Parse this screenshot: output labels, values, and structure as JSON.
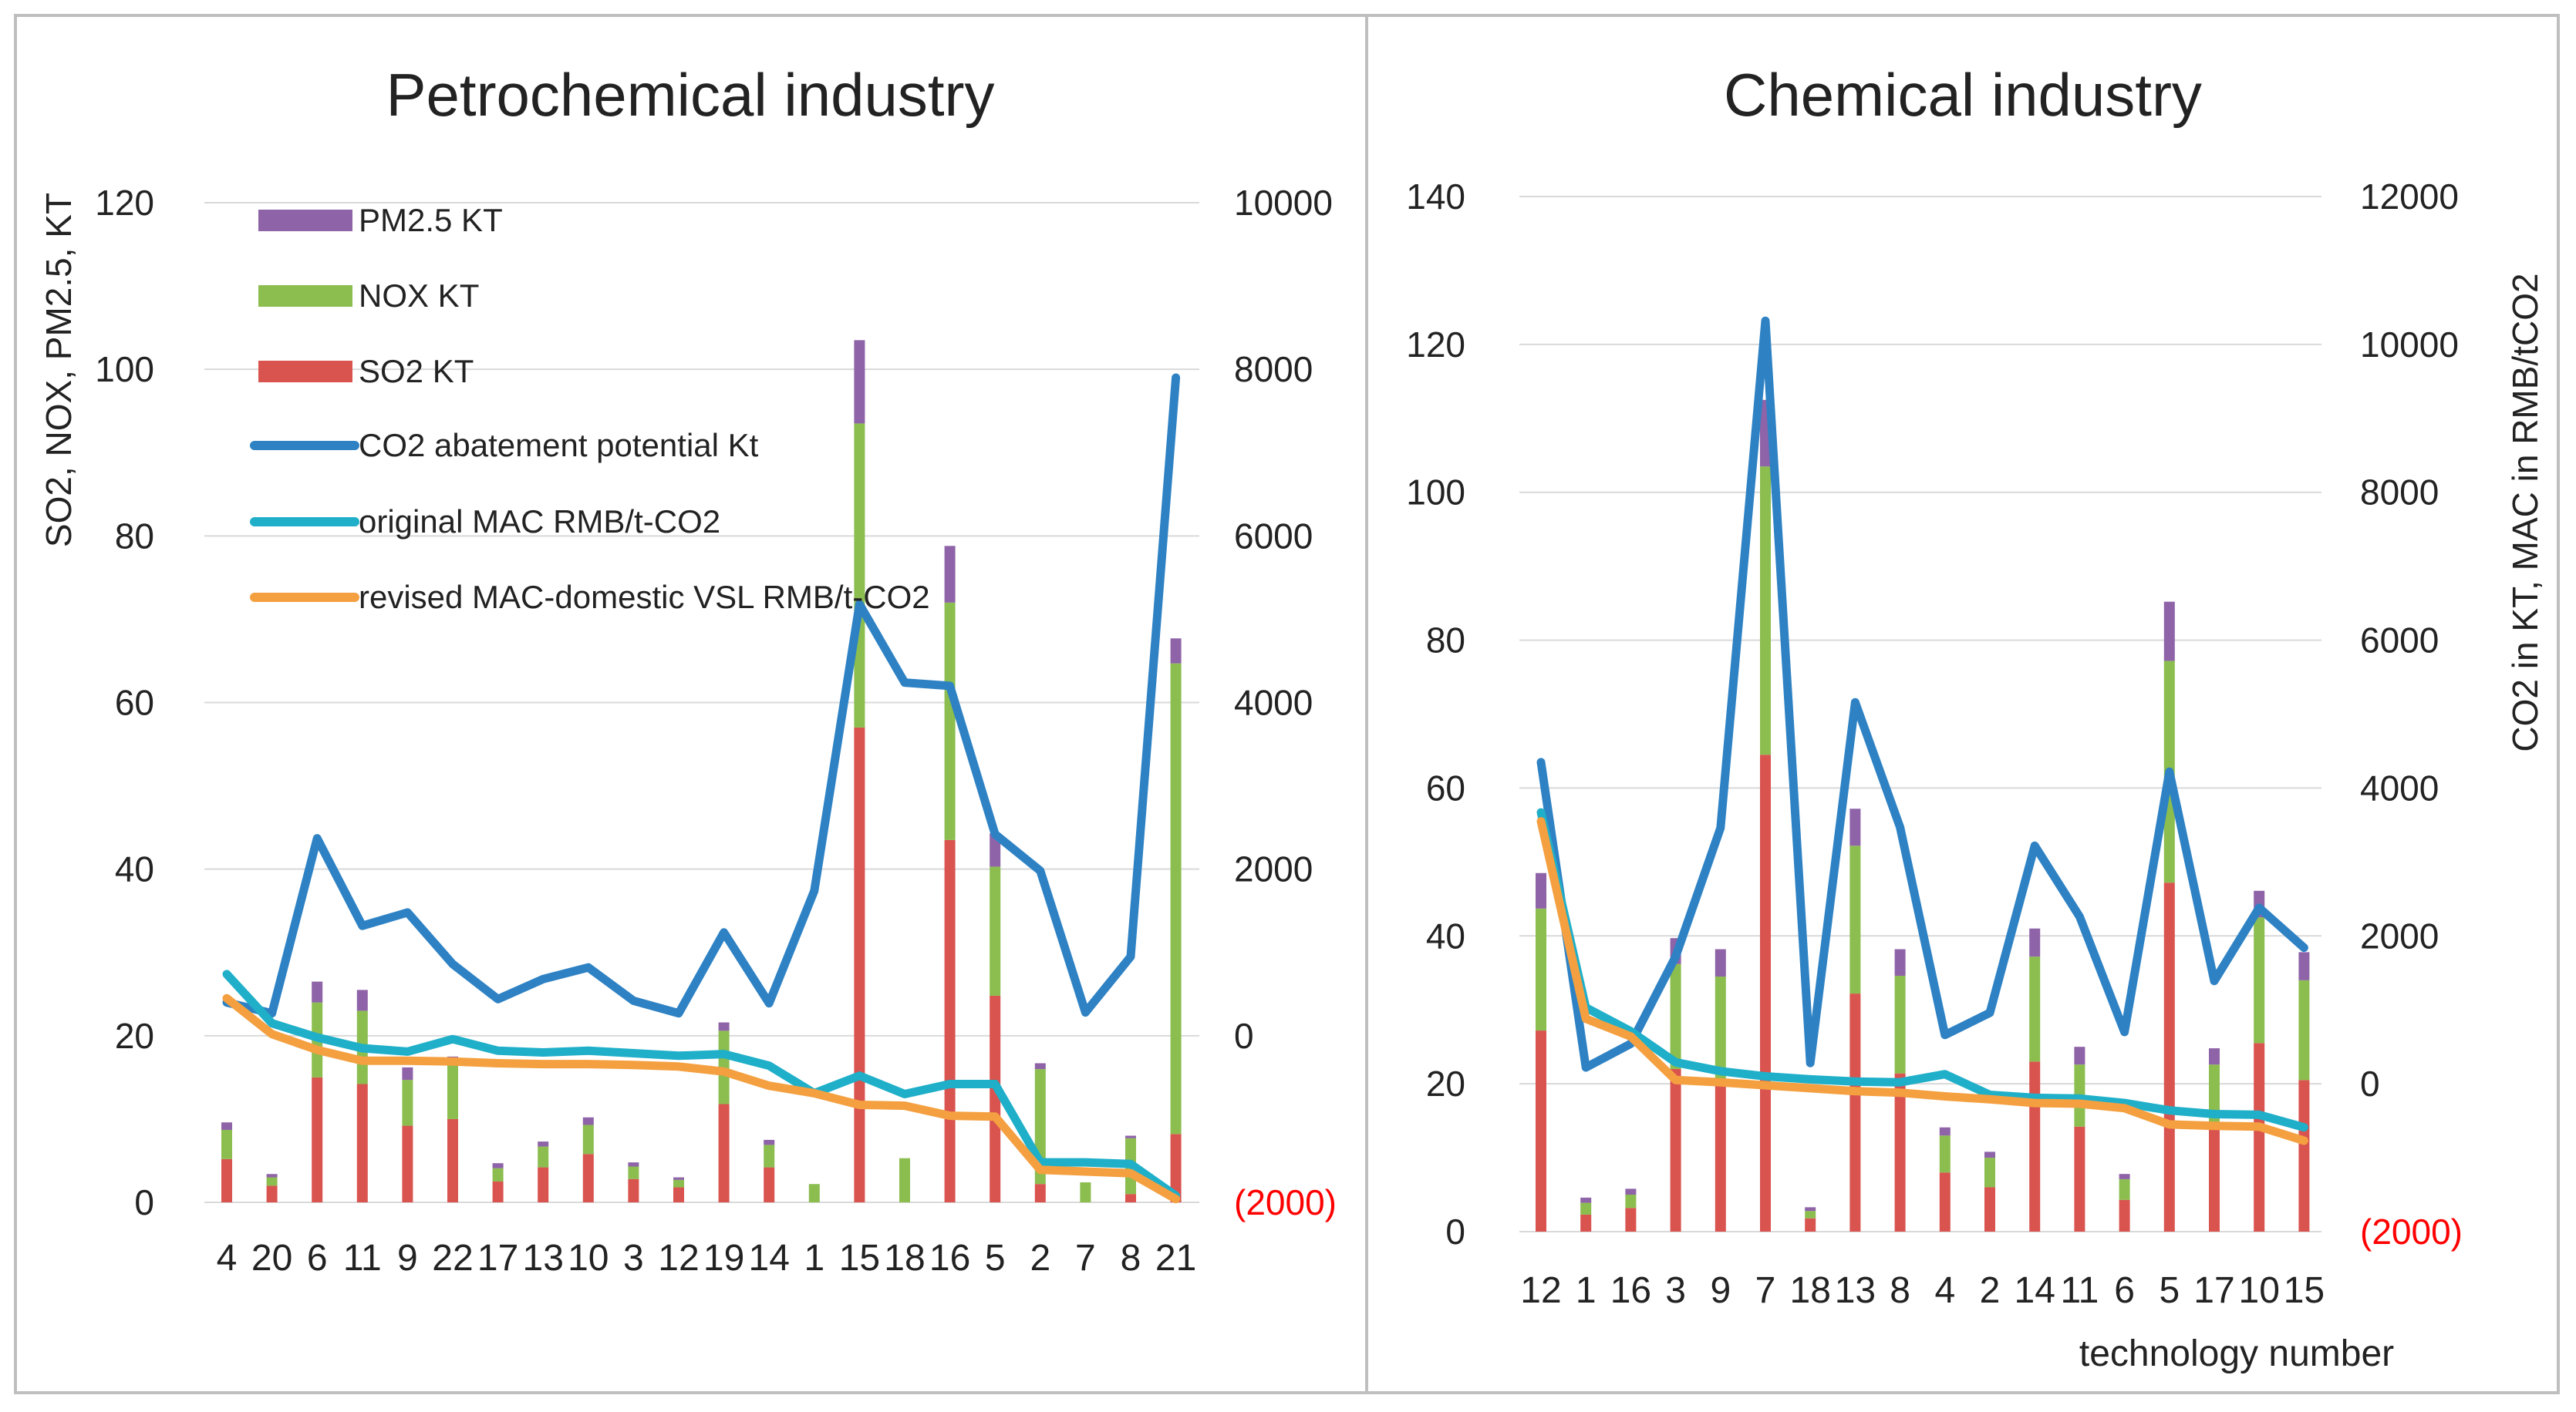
{
  "colors": {
    "so2": "#D9534F",
    "nox": "#8BBD4F",
    "pm25": "#8E63A8",
    "co2": "#2E82C4",
    "mac_original": "#1FAFC9",
    "mac_revised": "#F4A040",
    "negative_label": "#FF0000",
    "axis_text": "#222222",
    "grid": "#D9D9D9",
    "frame": "#BFBFBF"
  },
  "legend": {
    "pm25": "PM2.5 KT",
    "nox": "NOX KT",
    "so2": "SO2 KT",
    "co2": "CO2 abatement potential Kt",
    "mac_original": "original MAC RMB/t-CO2",
    "mac_revised": "revised MAC-domestic VSL RMB/t-CO2"
  },
  "chart_data": [
    {
      "type": "bar",
      "stacked": true,
      "title": "Petrochemical industry",
      "ylabel": "SO2, NOX, PM2.5, KT",
      "y2label": "",
      "xlabel": "",
      "ylim": [
        0,
        120
      ],
      "yticks": [
        0,
        20,
        40,
        60,
        80,
        100,
        120
      ],
      "y2lim": [
        -2000,
        10000
      ],
      "y2ticks": [
        -2000,
        0,
        2000,
        4000,
        6000,
        8000,
        10000
      ],
      "y2tick_labels": [
        "(2000)",
        "0",
        "2000",
        "4000",
        "6000",
        "8000",
        "10000"
      ],
      "categories": [
        "4",
        "20",
        "6",
        "11",
        "9",
        "22",
        "17",
        "13",
        "10",
        "3",
        "12",
        "19",
        "14",
        "1",
        "15",
        "18",
        "16",
        "5",
        "2",
        "7",
        "8",
        "21"
      ],
      "series": [
        {
          "name": "SO2 KT",
          "key": "so2",
          "axis": "left",
          "kind": "bar",
          "values": [
            5.2,
            2,
            15,
            14.2,
            9.2,
            10,
            2.5,
            4.2,
            5.8,
            2.8,
            1.8,
            11.8,
            4.2,
            0,
            57,
            0,
            43.5,
            24.8,
            2.2,
            0,
            1,
            8.2
          ]
        },
        {
          "name": "NOX KT",
          "key": "nox",
          "axis": "left",
          "kind": "bar",
          "values": [
            3.5,
            1,
            9,
            8.8,
            5.5,
            6.5,
            1.6,
            2.5,
            3.5,
            1.5,
            0.9,
            8.8,
            2.7,
            2.2,
            36.5,
            5.3,
            28.5,
            15.5,
            13.8,
            2.4,
            6.7,
            56.5
          ]
        },
        {
          "name": "PM2.5 KT",
          "key": "pm25",
          "axis": "left",
          "kind": "bar",
          "values": [
            0.9,
            0.4,
            2.5,
            2.5,
            1.5,
            1,
            0.6,
            0.6,
            0.9,
            0.5,
            0.3,
            1,
            0.6,
            0,
            10,
            0,
            6.8,
            4,
            0.7,
            0,
            0.3,
            3
          ]
        },
        {
          "name": "CO2 abatement potential Kt",
          "key": "co2",
          "axis": "right",
          "kind": "line",
          "values": [
            400,
            270,
            2370,
            1320,
            1480,
            860,
            440,
            680,
            820,
            420,
            270,
            1240,
            390,
            1740,
            5180,
            4240,
            4200,
            2420,
            1980,
            280,
            950,
            7900
          ]
        },
        {
          "name": "original MAC RMB/t-CO2",
          "key": "mac_original",
          "axis": "right",
          "kind": "line",
          "values": [
            740,
            150,
            -20,
            -150,
            -190,
            -40,
            -180,
            -200,
            -180,
            -210,
            -240,
            -220,
            -360,
            -690,
            -480,
            -700,
            -580,
            -580,
            -1520,
            -1520,
            -1540,
            -1920
          ]
        },
        {
          "name": "revised MAC-domestic VSL RMB/t-CO2",
          "key": "mac_revised",
          "axis": "right",
          "kind": "line",
          "values": [
            450,
            20,
            -170,
            -300,
            -300,
            -310,
            -330,
            -340,
            -340,
            -350,
            -370,
            -430,
            -600,
            -690,
            -830,
            -840,
            -960,
            -970,
            -1610,
            -1630,
            -1650,
            -1960
          ]
        }
      ]
    },
    {
      "type": "bar",
      "stacked": true,
      "title": "Chemical industry",
      "ylabel": "",
      "y2label": "CO2 in KT, MAC in RMB/tCO2",
      "xlabel": "technology number",
      "ylim": [
        0,
        140
      ],
      "yticks": [
        0,
        20,
        40,
        60,
        80,
        100,
        120,
        140
      ],
      "y2lim": [
        -2000,
        12000
      ],
      "y2ticks": [
        -2000,
        0,
        2000,
        4000,
        6000,
        8000,
        10000,
        12000
      ],
      "y2tick_labels": [
        "(2000)",
        "0",
        "2000",
        "4000",
        "6000",
        "8000",
        "10000",
        "12000"
      ],
      "categories": [
        "12",
        "1",
        "16",
        "3",
        "9",
        "7",
        "18",
        "13",
        "8",
        "4",
        "2",
        "14",
        "11",
        "6",
        "5",
        "17",
        "10",
        "15"
      ],
      "series": [
        {
          "name": "SO2 KT",
          "key": "so2",
          "axis": "left",
          "kind": "bar",
          "values": [
            27.2,
            2.3,
            3.2,
            22,
            20.5,
            64.5,
            1.8,
            32.2,
            21.4,
            8,
            6,
            23,
            14.2,
            4.3,
            47.2,
            14.2,
            25.5,
            20.5
          ]
        },
        {
          "name": "NOX KT",
          "key": "nox",
          "axis": "left",
          "kind": "bar",
          "values": [
            16.5,
            1.6,
            1.8,
            14.2,
            14,
            39,
            1,
            20,
            13.2,
            5,
            4,
            14.2,
            8.4,
            2.8,
            30,
            8.4,
            17,
            13.5
          ]
        },
        {
          "name": "PM2.5 KT",
          "key": "pm25",
          "axis": "left",
          "kind": "bar",
          "values": [
            4.8,
            0.7,
            0.8,
            3.5,
            3.7,
            9,
            0.5,
            5,
            3.6,
            1.1,
            0.8,
            3.8,
            2.4,
            0.7,
            8,
            2.2,
            3.6,
            3.8
          ]
        },
        {
          "name": "CO2 abatement potential Kt",
          "key": "co2",
          "axis": "right",
          "kind": "line",
          "values": [
            4350,
            220,
            540,
            1720,
            3460,
            10320,
            280,
            5160,
            3470,
            660,
            960,
            3220,
            2260,
            700,
            4220,
            1390,
            2380,
            1840
          ]
        },
        {
          "name": "original MAC RMB/t-CO2",
          "key": "mac_original",
          "axis": "right",
          "kind": "line",
          "values": [
            3670,
            1030,
            710,
            290,
            170,
            100,
            60,
            30,
            20,
            130,
            -150,
            -190,
            -200,
            -260,
            -360,
            -410,
            -420,
            -590
          ]
        },
        {
          "name": "revised MAC-domestic VSL RMB/t-CO2",
          "key": "mac_revised",
          "axis": "right",
          "kind": "line",
          "values": [
            3550,
            880,
            640,
            50,
            20,
            -20,
            -60,
            -100,
            -120,
            -170,
            -210,
            -260,
            -270,
            -330,
            -550,
            -570,
            -580,
            -770
          ]
        }
      ]
    }
  ]
}
